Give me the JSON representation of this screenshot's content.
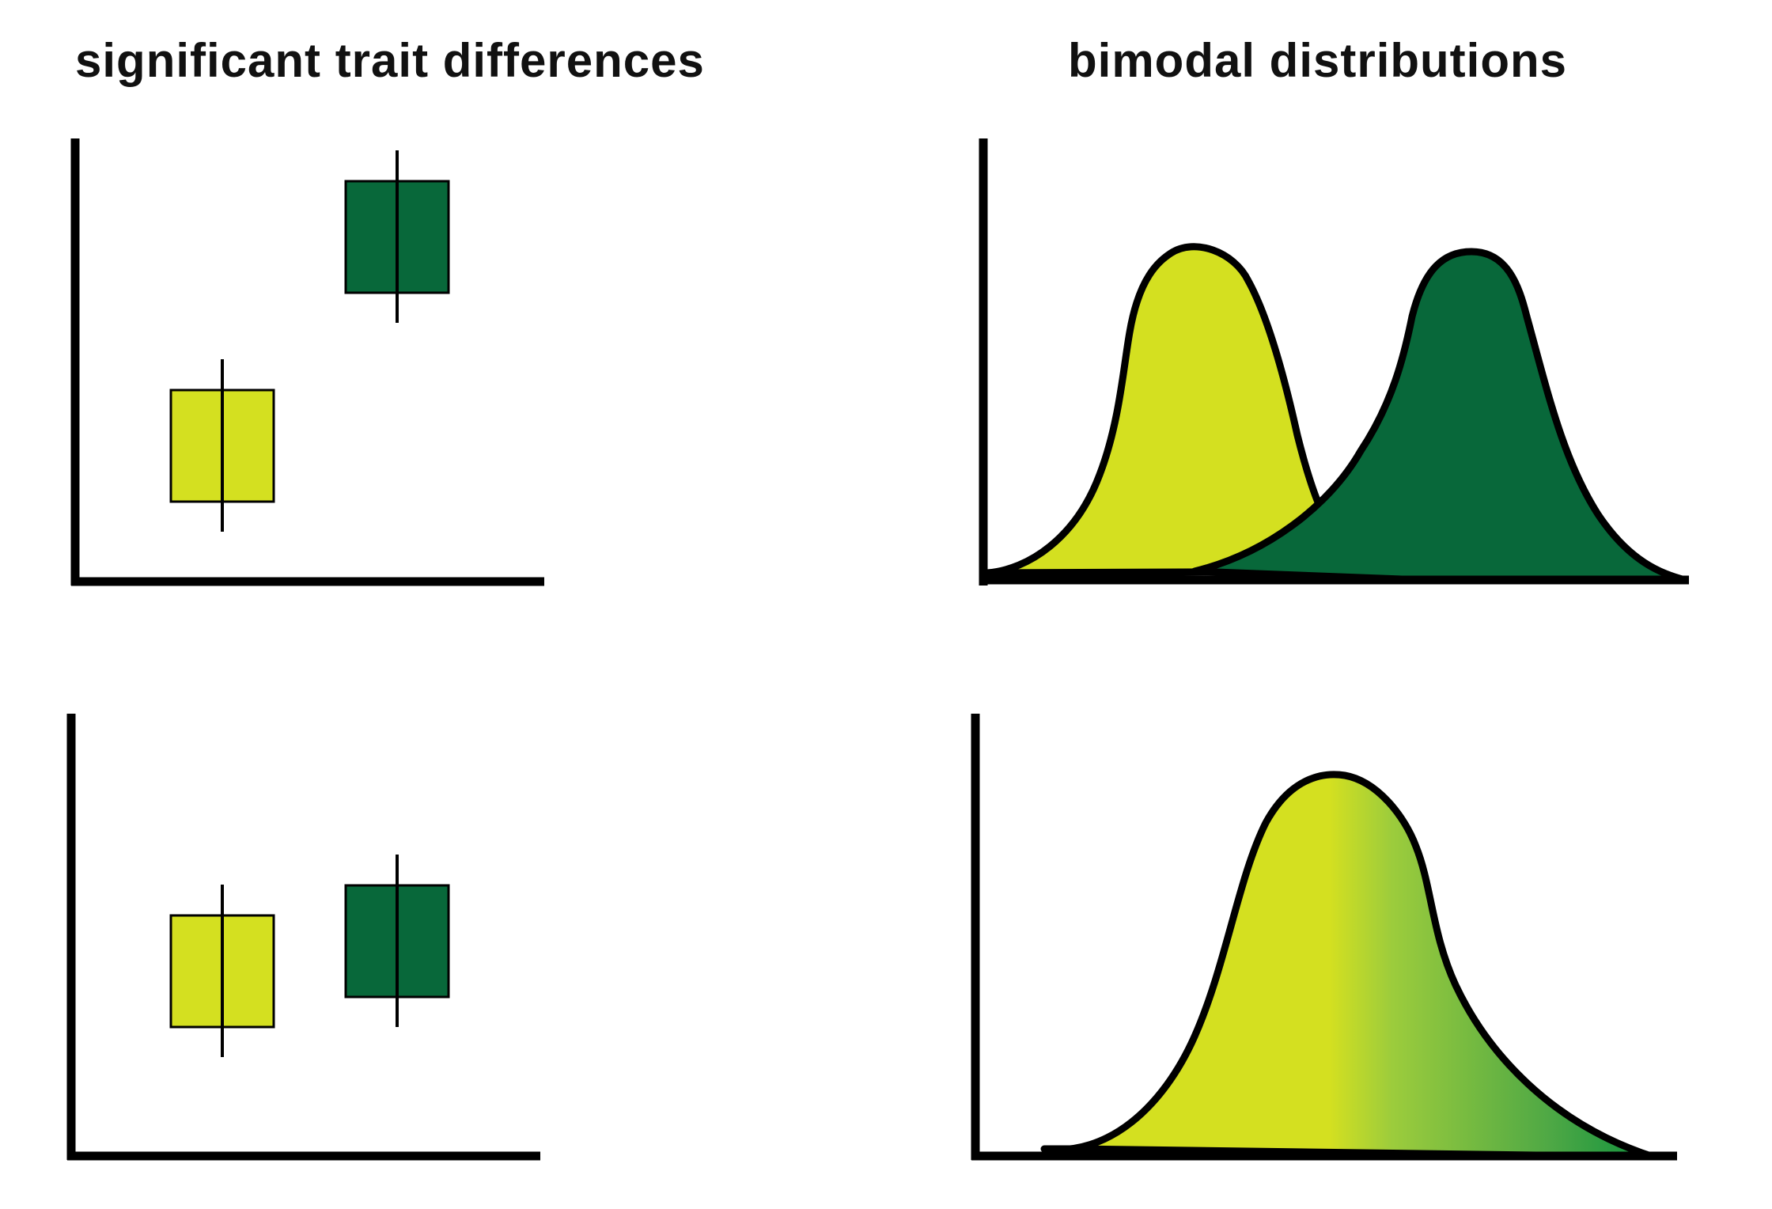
{
  "titles": {
    "left": "significant trait differences",
    "right": "bimodal distributions"
  },
  "colors": {
    "light": "#d4e020",
    "dark": "#08683a",
    "gradient_end": "#008c3c",
    "axis": "#000000"
  },
  "panels": [
    {
      "id": "top-left",
      "kind": "box-plot",
      "groups": [
        "light",
        "dark"
      ],
      "difference": "significant"
    },
    {
      "id": "top-right",
      "kind": "distribution",
      "modes": 2
    },
    {
      "id": "bottom-left",
      "kind": "box-plot",
      "groups": [
        "light",
        "dark"
      ],
      "difference": "small"
    },
    {
      "id": "bottom-right",
      "kind": "distribution",
      "modes": 1
    }
  ]
}
